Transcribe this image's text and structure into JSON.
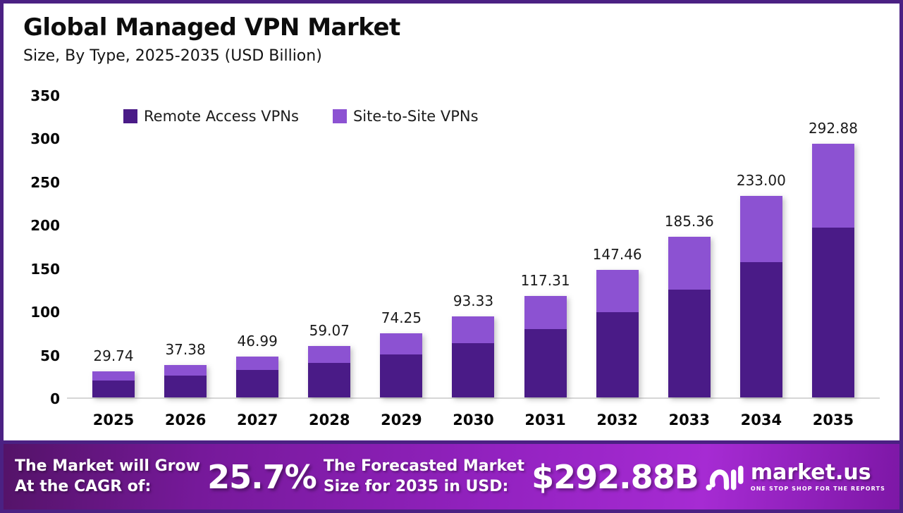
{
  "frame": {
    "border_color": "#4B2183"
  },
  "header": {
    "title": "Global Managed VPN Market",
    "subtitle": "Size, By Type, 2025-2035 (USD Billion)"
  },
  "legend": [
    {
      "label": "Remote Access VPNs",
      "color": "#4A1B87"
    },
    {
      "label": "Site-to-Site VPNs",
      "color": "#8C52D2"
    }
  ],
  "chart_data": {
    "type": "bar",
    "stacked": true,
    "title": "Global Managed VPN Market",
    "subtitle": "Size, By Type, 2025-2035 (USD Billion)",
    "xlabel": "",
    "ylabel": "USD Billion",
    "ylim": [
      0,
      350
    ],
    "yticks": [
      0,
      50,
      100,
      150,
      200,
      250,
      300,
      350
    ],
    "grid": false,
    "legend_position": "top",
    "categories": [
      "2025",
      "2026",
      "2027",
      "2028",
      "2029",
      "2030",
      "2031",
      "2032",
      "2033",
      "2034",
      "2035"
    ],
    "series": [
      {
        "name": "Remote Access VPNs",
        "color": "#4A1B87",
        "values": [
          19.93,
          25.04,
          31.48,
          39.58,
          49.75,
          62.53,
          78.6,
          98.8,
          124.19,
          156.11,
          196.23
        ]
      },
      {
        "name": "Site-to-Site VPNs",
        "color": "#8C52D2",
        "values": [
          9.81,
          12.34,
          15.51,
          19.49,
          24.5,
          30.8,
          38.71,
          48.66,
          61.17,
          76.89,
          96.65
        ]
      }
    ],
    "totals": [
      29.74,
      37.38,
      46.99,
      59.07,
      74.25,
      93.33,
      117.31,
      147.46,
      185.36,
      233.0,
      292.88
    ],
    "total_labels": [
      "29.74",
      "37.38",
      "46.99",
      "59.07",
      "74.25",
      "93.33",
      "117.31",
      "147.46",
      "185.36",
      "233.00",
      "292.88"
    ]
  },
  "footer": {
    "cagr_label_line1": "The Market will Grow",
    "cagr_label_line2": "At the CAGR of:",
    "cagr_value": "25.7%",
    "forecast_label_line1": "The Forecasted Market",
    "forecast_label_line2": "Size for 2035 in USD:",
    "forecast_value": "$292.88B",
    "logo": {
      "name": "market.us",
      "tagline": "ONE STOP SHOP FOR THE REPORTS"
    }
  }
}
